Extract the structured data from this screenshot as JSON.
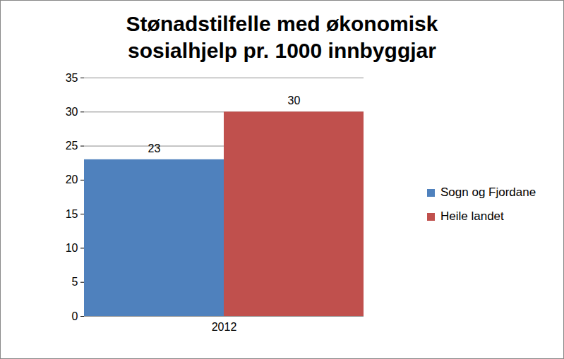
{
  "chart_data": {
    "type": "bar",
    "title": "Stønadstilfelle med økonomisk sosialhjelp pr. 1000 innbyggjar",
    "categories": [
      "2012"
    ],
    "series": [
      {
        "name": "Sogn og Fjordane",
        "color": "#4f81bd",
        "values": [
          23
        ]
      },
      {
        "name": "Heile landet",
        "color": "#c0504d",
        "values": [
          30
        ]
      }
    ],
    "ylim": [
      0,
      35
    ],
    "yticks": [
      0,
      5,
      10,
      15,
      20,
      25,
      30,
      35
    ],
    "grid": true,
    "legend": "right",
    "data_labels": true
  }
}
